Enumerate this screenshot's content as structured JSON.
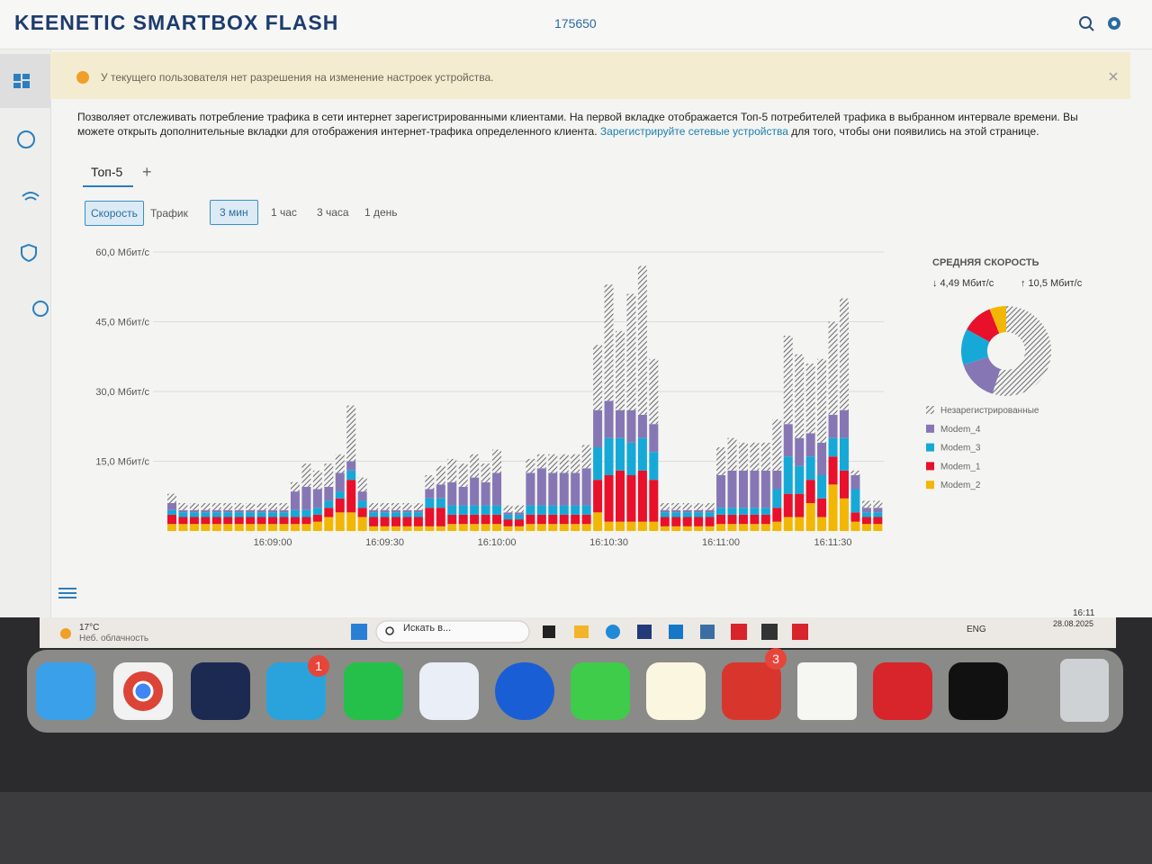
{
  "header": {
    "brand": "KEENETIC SMARTBOX FLASH",
    "device_id": "175650"
  },
  "warning": "У текущего пользователя нет разрешения на изменение настроек устройства.",
  "description": {
    "text1": "Позволяет отслеживать потребление трафика в сети интернет зарегистрированными клиентами. На первой вкладке отображается Топ-5 потребителей трафика в выбранном интервале времени. Вы можете открыть дополнительные вкладки для отображения интернет-трафика определенного клиента.",
    "link": "Зарегистрируйте сетевые устройства",
    "text2": "для того, чтобы они появились на этой странице."
  },
  "tabs": [
    "Топ-5",
    "+"
  ],
  "modes": [
    "Скорость",
    "Трафик"
  ],
  "intervals": [
    "3 мин",
    "1 час",
    "3 часа",
    "1 день"
  ],
  "chart_data": [
    {
      "type": "bar",
      "stacked": true,
      "categories": [
        null,
        null,
        null,
        null,
        null,
        null,
        null,
        null,
        null,
        "16:09:00",
        null,
        null,
        null,
        null,
        null,
        null,
        null,
        null,
        null,
        "16:09:30",
        null,
        null,
        null,
        null,
        null,
        null,
        null,
        null,
        null,
        "16:10:00",
        null,
        null,
        null,
        null,
        null,
        null,
        null,
        null,
        null,
        "16:10:30",
        null,
        null,
        null,
        null,
        null,
        null,
        null,
        null,
        null,
        "16:11:00",
        null,
        null,
        null,
        null,
        null,
        null,
        null,
        null,
        null,
        "16:11:30",
        null,
        null,
        null,
        null
      ],
      "series": [
        {
          "color": "#f2b705",
          "values": [
            1.5,
            1.5,
            1.5,
            1.5,
            1.5,
            1.5,
            1.5,
            1.5,
            1.5,
            1.5,
            1.5,
            1.5,
            1.5,
            2,
            3,
            4,
            4,
            3,
            1,
            1,
            1,
            1,
            1,
            1,
            1,
            1.5,
            1.5,
            1.5,
            1.5,
            1.5,
            1,
            1,
            1.5,
            1.5,
            1.5,
            1.5,
            1.5,
            1.5,
            4,
            2,
            2,
            2,
            2,
            2,
            1,
            1,
            1,
            1,
            1,
            1.5,
            1.5,
            1.5,
            1.5,
            1.5,
            2,
            3,
            3,
            6,
            3,
            10,
            7,
            2,
            1.5,
            1.5
          ]
        },
        {
          "color": "#e8102a",
          "values": [
            2,
            1.5,
            1.5,
            1.5,
            1.5,
            1.5,
            1.5,
            1.5,
            1.5,
            1.5,
            1.5,
            1.5,
            1.5,
            1.5,
            2,
            3,
            7,
            2,
            2,
            2,
            2,
            2,
            2,
            4,
            4,
            2,
            2,
            2,
            2,
            2,
            1.5,
            1.5,
            2,
            2,
            2,
            2,
            2,
            2,
            7,
            10,
            11,
            10,
            11,
            9,
            2,
            2,
            2,
            2,
            2,
            2,
            2,
            2,
            2,
            2,
            3,
            5,
            5,
            5,
            4,
            6,
            6,
            2,
            1.5,
            1.5
          ]
        },
        {
          "color": "#16a9d8",
          "values": [
            1,
            1,
            1,
            1,
            1,
            1,
            1,
            1,
            1,
            1,
            1,
            1.5,
            1.5,
            1.5,
            1.5,
            1.5,
            2,
            1.5,
            1,
            1,
            1,
            1,
            1,
            2,
            2,
            2,
            2,
            2,
            2,
            2,
            1,
            1,
            2,
            2,
            2,
            2,
            2,
            2,
            7,
            8,
            7,
            7,
            7,
            6,
            1,
            1,
            1,
            1,
            1,
            1.5,
            1.5,
            1.5,
            1.5,
            1.5,
            4,
            8,
            6,
            5,
            5,
            4,
            7,
            5,
            1,
            1
          ]
        },
        {
          "color": "#8677b4",
          "values": [
            1.5,
            0.5,
            0.5,
            0.5,
            0.5,
            0.5,
            0.5,
            0.5,
            0.5,
            0.5,
            0.5,
            4,
            5,
            4,
            3,
            4,
            2,
            2,
            0.5,
            0.5,
            0.5,
            0.5,
            0.5,
            2,
            3,
            5,
            4,
            6,
            5,
            7,
            0.5,
            0.5,
            7,
            8,
            7,
            7,
            7,
            8,
            8,
            8,
            6,
            7,
            5,
            6,
            0.5,
            0.5,
            0.5,
            0.5,
            0.5,
            7,
            8,
            8,
            8,
            8,
            4,
            7,
            6,
            5,
            7,
            5,
            6,
            3,
            1,
            1
          ]
        },
        {
          "color": "hatch",
          "values": [
            2,
            1.5,
            1.5,
            1.5,
            1.5,
            1.5,
            1.5,
            1.5,
            1.5,
            1.5,
            1.5,
            2,
            5,
            4,
            5,
            4,
            12,
            3,
            1.5,
            1.5,
            1.5,
            1.5,
            1.5,
            3,
            4,
            5,
            5,
            5,
            4,
            5,
            1.5,
            1.5,
            3,
            3,
            4,
            4,
            4,
            5,
            14,
            25,
            17,
            25,
            32,
            14,
            1.5,
            1.5,
            1.5,
            1.5,
            1.5,
            6,
            7,
            6,
            6,
            6,
            11,
            19,
            18,
            15,
            18,
            20,
            24,
            1,
            1.5,
            1.5
          ]
        }
      ],
      "ylim": [
        0,
        60
      ],
      "yticks": [
        {
          "value": 15,
          "label": "15,0 Мбит/с"
        },
        {
          "value": 30,
          "label": "30,0 Мбит/с"
        },
        {
          "value": 45,
          "label": "45,0 Мбит/с"
        },
        {
          "value": 60,
          "label": "60,0 Мбит/с"
        }
      ],
      "grid": true
    },
    {
      "type": "pie",
      "donut": true,
      "title": "СРЕДНЯЯ СКОРОСТЬ",
      "download": "↓ 4,49 Мбит/с",
      "upload": "↑ 10,5 Мбит/с",
      "categories": [
        "Незарегистрированные",
        "Modem_4",
        "Modem_3",
        "Modem_1",
        "Modem_2"
      ],
      "values": [
        55,
        15,
        13,
        11,
        6
      ],
      "colors": [
        "hatch",
        "#8677b4",
        "#16a9d8",
        "#e8102a",
        "#f2b705"
      ]
    }
  ],
  "taskbar": {
    "temperature": "17°C",
    "weather": "Неб. облачность",
    "search": "Искать в...",
    "language": "ENG",
    "time": "16:11",
    "date": "28.08.2025"
  },
  "dock": {
    "badges": [
      "1",
      "3"
    ]
  }
}
